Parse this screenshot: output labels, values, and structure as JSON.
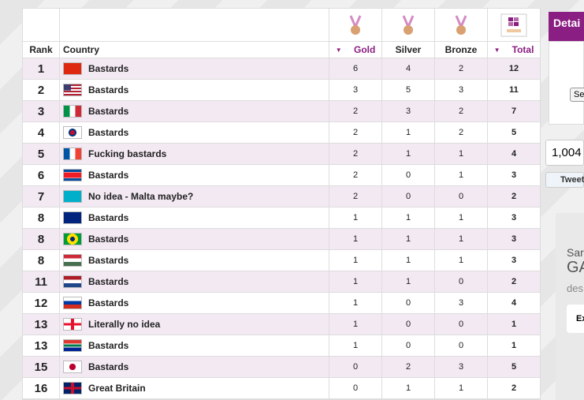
{
  "table": {
    "header": [
      "Rank",
      "Country",
      "Gold",
      "Silver",
      "Bronze",
      "Total"
    ],
    "rows": [
      [
        1,
        "Bastards",
        6,
        4,
        2,
        12
      ],
      [
        2,
        "Bastards",
        3,
        5,
        3,
        11
      ],
      [
        3,
        "Bastards",
        2,
        3,
        2,
        7
      ],
      [
        4,
        "Bastards",
        2,
        1,
        2,
        5
      ],
      [
        5,
        "Fucking bastards",
        2,
        1,
        1,
        4
      ],
      [
        6,
        "Bastards",
        2,
        0,
        1,
        3
      ],
      [
        7,
        "No idea - Malta maybe?",
        2,
        0,
        0,
        2
      ],
      [
        8,
        "Bastards",
        1,
        1,
        1,
        3
      ],
      [
        8,
        "Bastards",
        1,
        1,
        1,
        3
      ],
      [
        8,
        "Bastards",
        1,
        1,
        1,
        3
      ],
      [
        11,
        "Bastards",
        1,
        1,
        0,
        2
      ],
      [
        12,
        "Bastards",
        1,
        0,
        3,
        4
      ],
      [
        13,
        "Literally no idea",
        1,
        0,
        0,
        1
      ],
      [
        13,
        "Bastards",
        1,
        0,
        0,
        1
      ],
      [
        15,
        "Bastards",
        0,
        2,
        3,
        5
      ],
      [
        16,
        "Great Britain",
        0,
        1,
        1,
        2
      ]
    ]
  },
  "sidebar": {
    "tab": "Detai",
    "button": "Se",
    "count": "1,004",
    "tweet": "Tweet",
    "ad": [
      "Sar",
      "GA",
      "des",
      "Ex"
    ]
  }
}
